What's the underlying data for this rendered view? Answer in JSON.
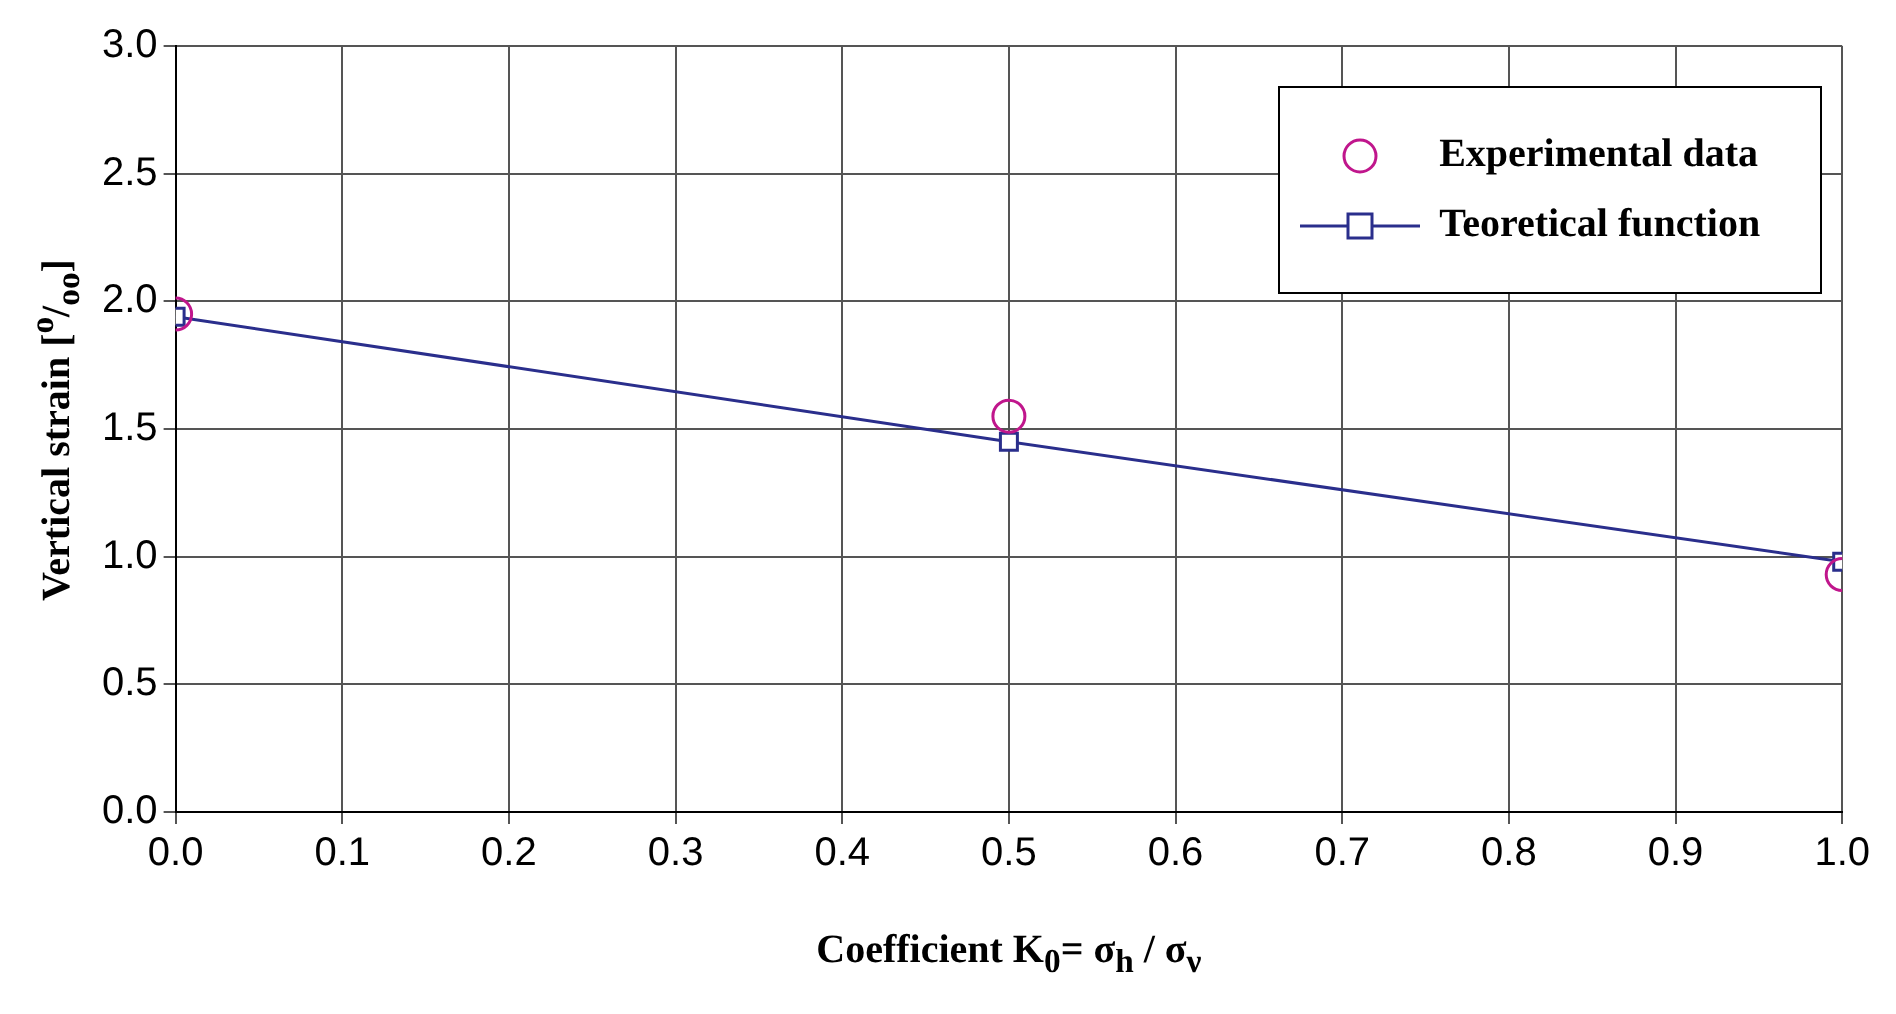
{
  "chart_data": {
    "type": "line",
    "xlabel": "Coefficient K$_{0}$= σ$_{h}$ / σ$_{ν}$",
    "ylabel": "Vertical strain [$^{o}$/$_{oo}$]",
    "series": [
      {
        "name": "Experimental data",
        "type": "scatter",
        "color": "#c0168c",
        "marker": "circle",
        "x": [
          0,
          0.5,
          1
        ],
        "values": [
          1.95,
          1.55,
          0.93
        ]
      },
      {
        "name": "Teoretical function",
        "type": "line",
        "color": "#2a2e8c",
        "marker": "square",
        "line_style": "solid",
        "x": [
          0,
          0.5,
          1
        ],
        "values": [
          1.94,
          1.45,
          0.98
        ]
      }
    ],
    "xlim": [
      0,
      1
    ],
    "xticks": [
      {
        "value": 0,
        "label": "0.0"
      },
      0.1,
      0.2,
      0.3,
      0.4,
      0.5,
      0.6,
      0.7,
      0.8,
      0.9,
      {
        "value": 1,
        "label": "1.0"
      }
    ],
    "ylim": [
      0,
      3
    ],
    "yticks": [
      {
        "value": 0,
        "label": "0.0"
      },
      0.5,
      {
        "value": 1,
        "label": "1.0"
      },
      1.5,
      {
        "value": 2,
        "label": "2.0"
      },
      2.5,
      {
        "value": 3,
        "label": "3.0"
      }
    ],
    "grid": true,
    "legend": "top right"
  }
}
